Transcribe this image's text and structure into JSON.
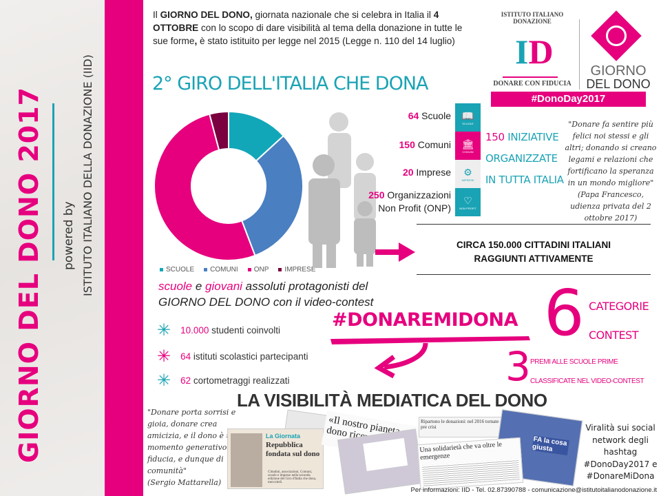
{
  "side": {
    "title": "GIORNO DEL DONO 2017",
    "powered_by": "powered by",
    "organization": "ISTITUTO ITALIANO DELLA DONAZIONE (IID)"
  },
  "intro": {
    "p1": "Il ",
    "b1": "GIORNO DEL DONO,",
    "p2": " giornata nazionale che si celebra in Italia il ",
    "b2": "4 OTTOBRE",
    "p3": " con lo scopo di dare visibilità al tema della donazione in tutte le sue forme",
    "b3": ",",
    "p4": " è stato istituito per legge nel 2015 (Legge n. 110 del 14 luglio)"
  },
  "logo": {
    "arc_text": "ISTITUTO ITALIANO DONAZIONE",
    "letters": "ID",
    "motto": "DONARE CON FIDUCIA",
    "giorno": "GIORNO",
    "del_dono": "DEL DONO",
    "hashtag": "#DonoDay2017"
  },
  "giro_title": "2° GIRO DELL'ITALIA CHE DONA",
  "chart_data": {
    "type": "pie",
    "donut": true,
    "categories": [
      "SCUOLE",
      "COMUNI",
      "ONP",
      "IMPRESE"
    ],
    "values": [
      64,
      150,
      250,
      20
    ],
    "colors": [
      "#12a7b8",
      "#4a7fc1",
      "#e6007e",
      "#7a0040"
    ],
    "legend": "bottom"
  },
  "stats": [
    {
      "num": "64",
      "label": " Scuole"
    },
    {
      "num": "150",
      "label": " Comuni"
    },
    {
      "num": "20",
      "label": " Imprese"
    },
    {
      "num": "250",
      "label": " Organizzazioni",
      "label2": "Non Profit (ONP)"
    }
  ],
  "tiles": [
    {
      "icon": "book-icon",
      "label": "SCUOLE",
      "color": "#1aa3b5"
    },
    {
      "icon": "building-icon",
      "label": "COMUNI",
      "color": "#e6007e"
    },
    {
      "icon": "gears-icon",
      "label": "IMPRESE",
      "color": "#eeeeee"
    },
    {
      "icon": "heart-icon",
      "label": "NON PROFIT",
      "color": "#1aa3b5"
    }
  ],
  "iniziative": {
    "num": "150",
    "l1": " INIZIATIVE",
    "l2": "ORGANIZZATE",
    "l3": "IN TUTTA ITALIA"
  },
  "papa_quote": "\"Donare fa sentire più felici noi stessi e gli altri; donando si creano legami e relazioni che fortificano la speranza in un mondo migliore\"",
  "papa_source": "(Papa Francesco, udienza privata del 2 ottobre 2017)",
  "circa": {
    "l1": "CIRCA 150.000 CITTADINI ITALIANI",
    "l2": "RAGGIUNTI ATTIVAMENTE"
  },
  "protag": {
    "w1": "scuole",
    "w2": " e ",
    "w3": "giovani",
    "w4": " assoluti protagonisti del",
    "l2": "GIORNO DEL DONO con il video-contest"
  },
  "bullets": [
    {
      "num": "10.000",
      "text": " studenti coinvolti"
    },
    {
      "num": "64",
      "text": " istituti scolastici partecipanti"
    },
    {
      "num": "62",
      "text": " cortometraggi realizzati"
    }
  ],
  "hashtag": "#DONAREMIDONA",
  "contest": {
    "six": "6",
    "cat1": "CATEGORIE",
    "cat2": "CONTEST",
    "three": "3",
    "premi1": "PREMI ALLE SCUOLE PRIME",
    "premi2": "CLASSIFICATE NEL VIDEO-CONTEST"
  },
  "visibility_title": "LA VISIBILITÀ MEDIATICA DEL DONO",
  "mattarella_quote": "\"Donare porta sorrisi e gioia, donare crea amicizia, e il dono è un momento generativo di fiducia, e dunque di comunità\"",
  "mattarella_source": "(Sergio Mattarella)",
  "clips": {
    "c1_section": "La Giornata",
    "c1_headline": "Repubblica fondata sul dono",
    "c1_body": "Cittadini, associazioni, Comuni, scuole e imprese nella seconda edizione del Giro d'Italia che dona, mercoledì.",
    "c2_headline": "«Il nostro pianeta dono ricevuto da con",
    "c3_headline": "Ripartono le donazioni: nel 2016 tornate ai livelli pre crisi",
    "c4_headline": "Una solidarietà che va oltre le emergenze",
    "c5_text": "FA la cosa giusta"
  },
  "viral": "Viralità sui social network degli hashtag #DonoDay2017 e #DonareMiDona",
  "footer": "Per informazioni: IID - Tel. 02.87390788 - comunicazione@istitutoitalianodonazione.it"
}
